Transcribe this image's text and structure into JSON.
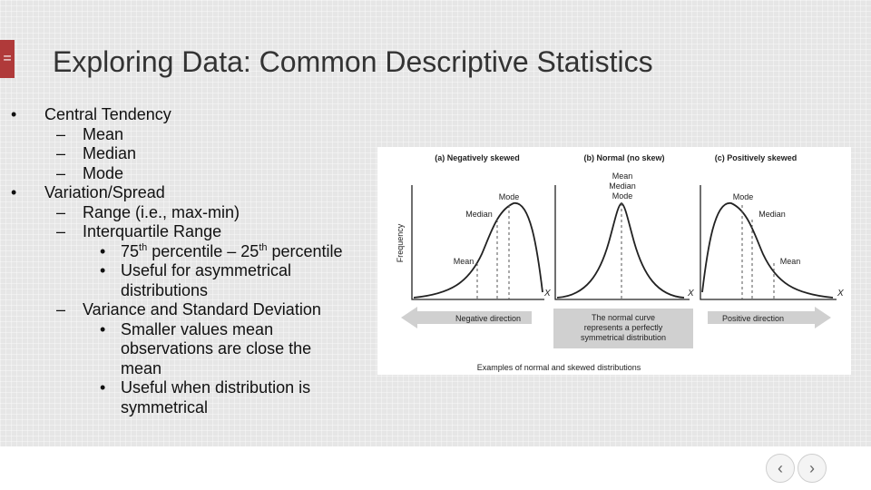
{
  "slide": {
    "menu_icon": "hamburger-icon",
    "title": "Exploring Data: Common Descriptive Statistics",
    "bullets": {
      "central_tendency": "Central Tendency",
      "mean": "Mean",
      "median": "Median",
      "mode": "Mode",
      "variation": "Variation/Spread",
      "range": "Range (i.e., max-min)",
      "iqr": "Interquartile Range",
      "percentile_75": "75",
      "percentile_th": "th",
      "percentile_mid": " percentile – 25",
      "percentile_end": " percentile",
      "useful_asym": "Useful for asymmetrical distributions",
      "variance_sd": "Variance and Standard Deviation",
      "smaller_values": "Smaller values mean observations are close the mean",
      "useful_sym": "Useful when distribution is symmetrical"
    },
    "markers": {
      "level1": "•",
      "level2": "–",
      "level3": "•"
    }
  },
  "figure": {
    "panel_a_title": "(a) Negatively skewed",
    "panel_b_title": "(b) Normal (no skew)",
    "panel_c_title": "(c) Positively skewed",
    "ylabel": "Frequency",
    "x_label": "X",
    "a_labels": {
      "mode": "Mode",
      "median": "Median",
      "mean": "Mean"
    },
    "b_labels": {
      "mean": "Mean",
      "median": "Median",
      "mode": "Mode"
    },
    "c_labels": {
      "mode": "Mode",
      "median": "Median",
      "mean": "Mean"
    },
    "arrow_left": "Negative direction",
    "center_box_line1": "The normal curve",
    "center_box_line2": "represents a perfectly",
    "center_box_line3": "symmetrical distribution",
    "arrow_right": "Positive direction",
    "caption": "Examples of normal and skewed distributions"
  },
  "nav": {
    "prev_icon": "chevron-left-icon",
    "next_icon": "chevron-right-icon",
    "prev_glyph": "‹",
    "next_glyph": "›"
  }
}
